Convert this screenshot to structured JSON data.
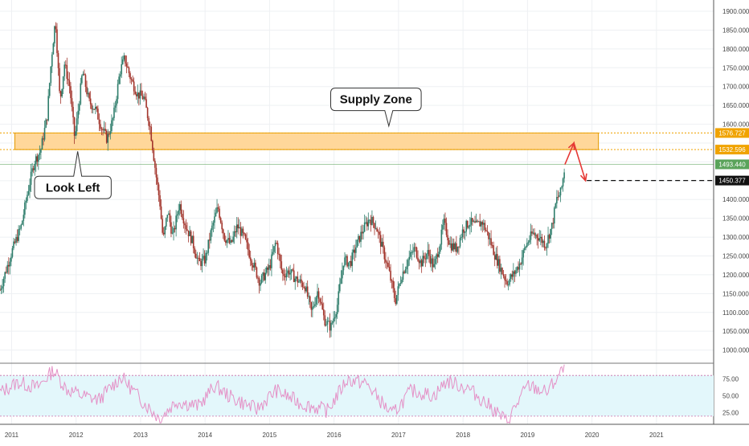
{
  "chart_data": [
    {
      "type": "candlestick",
      "title": "",
      "x": {
        "labels": [
          "2011",
          "2012",
          "2013",
          "2014",
          "2015",
          "2016",
          "2017",
          "2018",
          "2019",
          "2020",
          "2021"
        ]
      },
      "y": {
        "ticks": [
          1000,
          1050,
          1100,
          1150,
          1200,
          1250,
          1300,
          1350,
          1400,
          1450,
          1500,
          1550,
          1600,
          1650,
          1700,
          1750,
          1800,
          1850,
          1900
        ],
        "tick_format": "3dec",
        "ylim": [
          965,
          1930
        ],
        "side": "right"
      },
      "price_path": [
        {
          "date": "2010.82",
          "price": 1160
        },
        {
          "date": "2011.00",
          "price": 1260
        },
        {
          "date": "2011.15",
          "price": 1330
        },
        {
          "date": "2011.25",
          "price": 1420
        },
        {
          "date": "2011.35",
          "price": 1500
        },
        {
          "date": "2011.45",
          "price": 1530
        },
        {
          "date": "2011.55",
          "price": 1620
        },
        {
          "date": "2011.62",
          "price": 1780
        },
        {
          "date": "2011.68",
          "price": 1880
        },
        {
          "date": "2011.75",
          "price": 1660
        },
        {
          "date": "2011.82",
          "price": 1760
        },
        {
          "date": "2011.90",
          "price": 1700
        },
        {
          "date": "2011.98",
          "price": 1560
        },
        {
          "date": "2012.10",
          "price": 1740
        },
        {
          "date": "2012.20",
          "price": 1660
        },
        {
          "date": "2012.30",
          "price": 1640
        },
        {
          "date": "2012.40",
          "price": 1590
        },
        {
          "date": "2012.48",
          "price": 1560
        },
        {
          "date": "2012.58",
          "price": 1620
        },
        {
          "date": "2012.68",
          "price": 1740
        },
        {
          "date": "2012.75",
          "price": 1775
        },
        {
          "date": "2012.85",
          "price": 1720
        },
        {
          "date": "2012.95",
          "price": 1680
        },
        {
          "date": "2013.05",
          "price": 1670
        },
        {
          "date": "2013.15",
          "price": 1590
        },
        {
          "date": "2013.25",
          "price": 1450
        },
        {
          "date": "2013.30",
          "price": 1390
        },
        {
          "date": "2013.35",
          "price": 1290
        },
        {
          "date": "2013.42",
          "price": 1370
        },
        {
          "date": "2013.50",
          "price": 1300
        },
        {
          "date": "2013.60",
          "price": 1390
        },
        {
          "date": "2013.70",
          "price": 1330
        },
        {
          "date": "2013.80",
          "price": 1290
        },
        {
          "date": "2013.90",
          "price": 1230
        },
        {
          "date": "2014.00",
          "price": 1240
        },
        {
          "date": "2014.10",
          "price": 1320
        },
        {
          "date": "2014.20",
          "price": 1380
        },
        {
          "date": "2014.30",
          "price": 1300
        },
        {
          "date": "2014.40",
          "price": 1280
        },
        {
          "date": "2014.50",
          "price": 1330
        },
        {
          "date": "2014.60",
          "price": 1300
        },
        {
          "date": "2014.70",
          "price": 1250
        },
        {
          "date": "2014.85",
          "price": 1180
        },
        {
          "date": "2015.00",
          "price": 1220
        },
        {
          "date": "2015.10",
          "price": 1290
        },
        {
          "date": "2015.20",
          "price": 1200
        },
        {
          "date": "2015.30",
          "price": 1210
        },
        {
          "date": "2015.40",
          "price": 1190
        },
        {
          "date": "2015.55",
          "price": 1170
        },
        {
          "date": "2015.65",
          "price": 1100
        },
        {
          "date": "2015.75",
          "price": 1160
        },
        {
          "date": "2015.85",
          "price": 1080
        },
        {
          "date": "2015.95",
          "price": 1060
        },
        {
          "date": "2016.05",
          "price": 1120
        },
        {
          "date": "2016.15",
          "price": 1240
        },
        {
          "date": "2016.25",
          "price": 1230
        },
        {
          "date": "2016.35",
          "price": 1280
        },
        {
          "date": "2016.45",
          "price": 1320
        },
        {
          "date": "2016.55",
          "price": 1350
        },
        {
          "date": "2016.65",
          "price": 1330
        },
        {
          "date": "2016.75",
          "price": 1270
        },
        {
          "date": "2016.85",
          "price": 1210
        },
        {
          "date": "2016.95",
          "price": 1130
        },
        {
          "date": "2017.05",
          "price": 1200
        },
        {
          "date": "2017.15",
          "price": 1240
        },
        {
          "date": "2017.25",
          "price": 1270
        },
        {
          "date": "2017.35",
          "price": 1230
        },
        {
          "date": "2017.45",
          "price": 1260
        },
        {
          "date": "2017.55",
          "price": 1220
        },
        {
          "date": "2017.65",
          "price": 1290
        },
        {
          "date": "2017.70",
          "price": 1340
        },
        {
          "date": "2017.80",
          "price": 1280
        },
        {
          "date": "2017.90",
          "price": 1270
        },
        {
          "date": "2018.00",
          "price": 1320
        },
        {
          "date": "2018.10",
          "price": 1340
        },
        {
          "date": "2018.20",
          "price": 1330
        },
        {
          "date": "2018.30",
          "price": 1340
        },
        {
          "date": "2018.40",
          "price": 1300
        },
        {
          "date": "2018.50",
          "price": 1250
        },
        {
          "date": "2018.60",
          "price": 1210
        },
        {
          "date": "2018.68",
          "price": 1180
        },
        {
          "date": "2018.78",
          "price": 1200
        },
        {
          "date": "2018.88",
          "price": 1230
        },
        {
          "date": "2018.98",
          "price": 1280
        },
        {
          "date": "2019.08",
          "price": 1310
        },
        {
          "date": "2019.18",
          "price": 1300
        },
        {
          "date": "2019.28",
          "price": 1280
        },
        {
          "date": "2019.38",
          "price": 1330
        },
        {
          "date": "2019.45",
          "price": 1400
        },
        {
          "date": "2019.52",
          "price": 1420
        },
        {
          "date": "2019.58",
          "price": 1490
        }
      ],
      "levels": [
        {
          "price": 1576.727,
          "label": "1576.727",
          "color": "#f0a300",
          "style": "dotted"
        },
        {
          "price": 1532.596,
          "label": "1532.596",
          "color": "#f0a300",
          "style": "dotted"
        },
        {
          "price": 1493.44,
          "label": "1493.440",
          "color": "#5aa35a",
          "style": "solid-light"
        },
        {
          "price": 1450.377,
          "label": "1450.377",
          "color": "#111111",
          "style": "dashed"
        }
      ],
      "zone": {
        "from": 1532.596,
        "to": 1576.727,
        "date_start": "2011.05",
        "date_end": "2020.10",
        "fill": "#ffd79a",
        "stroke": "#e39a00"
      },
      "annotations": [
        {
          "text": "Supply Zone",
          "date": "2016.65",
          "price": 1666
        },
        {
          "text": "Look Left",
          "date": "2011.95",
          "price": 1432
        }
      ],
      "projection": {
        "color": "#e53935",
        "points": [
          {
            "date": "2019.58",
            "price": 1493
          },
          {
            "date": "2019.72",
            "price": 1550
          },
          {
            "date": "2019.90",
            "price": 1450
          }
        ],
        "dash_to": "2021.60"
      },
      "colors": {
        "up": "#2e7d6b",
        "down": "#a2342b",
        "grid": "#eef0f3"
      }
    },
    {
      "type": "line",
      "name": "",
      "ticks": [
        25,
        50,
        75
      ],
      "tick_labels": [
        "25.00",
        "50.00",
        "75.00"
      ],
      "ylim": [
        8,
        98
      ],
      "bands": {
        "upper": 80,
        "lower": 20,
        "fill": "#e3f7fb",
        "band_color": "#c96ca8"
      },
      "line_color": "#e490c6",
      "values_at": [
        {
          "date": "2010.82",
          "value": 55
        },
        {
          "date": "2011.10",
          "value": 70
        },
        {
          "date": "2011.40",
          "value": 62
        },
        {
          "date": "2011.65",
          "value": 88
        },
        {
          "date": "2011.85",
          "value": 60
        },
        {
          "date": "2012.10",
          "value": 50
        },
        {
          "date": "2012.35",
          "value": 44
        },
        {
          "date": "2012.70",
          "value": 78
        },
        {
          "date": "2013.00",
          "value": 45
        },
        {
          "date": "2013.30",
          "value": 16
        },
        {
          "date": "2013.55",
          "value": 42
        },
        {
          "date": "2013.90",
          "value": 35
        },
        {
          "date": "2014.15",
          "value": 65
        },
        {
          "date": "2014.40",
          "value": 48
        },
        {
          "date": "2014.80",
          "value": 30
        },
        {
          "date": "2015.10",
          "value": 58
        },
        {
          "date": "2015.50",
          "value": 38
        },
        {
          "date": "2015.90",
          "value": 28
        },
        {
          "date": "2016.20",
          "value": 74
        },
        {
          "date": "2016.50",
          "value": 68
        },
        {
          "date": "2016.90",
          "value": 22
        },
        {
          "date": "2017.20",
          "value": 58
        },
        {
          "date": "2017.55",
          "value": 50
        },
        {
          "date": "2017.75",
          "value": 72
        },
        {
          "date": "2018.10",
          "value": 60
        },
        {
          "date": "2018.45",
          "value": 32
        },
        {
          "date": "2018.68",
          "value": 12
        },
        {
          "date": "2019.00",
          "value": 65
        },
        {
          "date": "2019.30",
          "value": 55
        },
        {
          "date": "2019.58",
          "value": 92
        }
      ]
    }
  ]
}
